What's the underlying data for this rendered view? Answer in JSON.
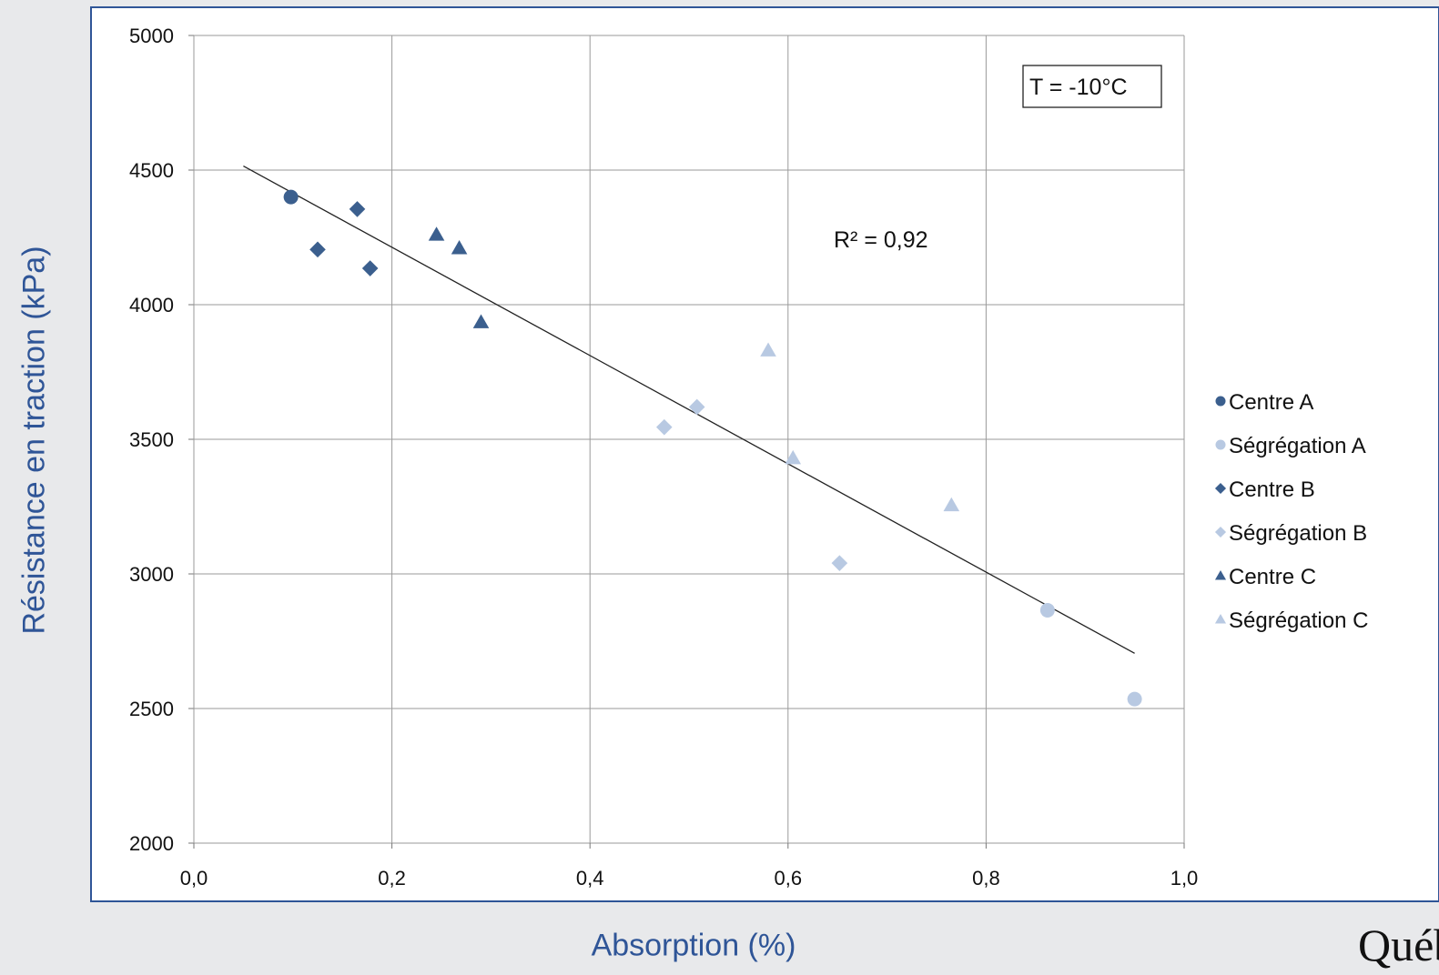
{
  "chart_data": {
    "type": "scatter",
    "title": "",
    "xlabel": "Absorption (%)",
    "ylabel": "Résistance en traction (kPa)",
    "xlim": [
      0,
      1.0
    ],
    "ylim": [
      2000,
      5000
    ],
    "x_ticks": [
      0,
      0.2,
      0.4,
      0.6,
      0.8,
      1.0
    ],
    "x_tick_labels": [
      "0,0",
      "0,2",
      "0,4",
      "0,6",
      "0,8",
      "1,0"
    ],
    "y_ticks": [
      2000,
      2500,
      3000,
      3500,
      4000,
      4500,
      5000
    ],
    "y_tick_labels": [
      "2000",
      "2500",
      "3000",
      "3500",
      "4000",
      "4500",
      "5000"
    ],
    "grid": true,
    "legend_position": "right",
    "series": [
      {
        "name": "Centre A",
        "marker": "circle",
        "color": "#3b5f8e",
        "points": [
          [
            0.098,
            4400
          ]
        ]
      },
      {
        "name": "Ségrégation A",
        "marker": "circle",
        "color": "#b8c9e2",
        "points": [
          [
            0.862,
            2865
          ],
          [
            0.95,
            2535
          ]
        ]
      },
      {
        "name": "Centre B",
        "marker": "diamond",
        "color": "#3b5f8e",
        "points": [
          [
            0.165,
            4355
          ],
          [
            0.125,
            4205
          ],
          [
            0.178,
            4135
          ]
        ]
      },
      {
        "name": "Ségrégation B",
        "marker": "diamond",
        "color": "#b8c9e2",
        "points": [
          [
            0.475,
            3545
          ],
          [
            0.508,
            3620
          ],
          [
            0.652,
            3040
          ]
        ]
      },
      {
        "name": "Centre C",
        "marker": "triangle",
        "color": "#3b5f8e",
        "points": [
          [
            0.245,
            4260
          ],
          [
            0.268,
            4210
          ],
          [
            0.29,
            3935
          ]
        ]
      },
      {
        "name": "Ségrégation C",
        "marker": "triangle",
        "color": "#b8c9e2",
        "points": [
          [
            0.58,
            3830
          ],
          [
            0.605,
            3430
          ],
          [
            0.765,
            3255
          ]
        ]
      }
    ],
    "trendline": {
      "type": "linear",
      "x": [
        0.05,
        0.95
      ],
      "y": [
        4515,
        2705
      ],
      "r_squared_label": "R² = 0,92"
    },
    "annotation_box": "T = -10°C"
  },
  "brand": {
    "text": "Québec"
  }
}
